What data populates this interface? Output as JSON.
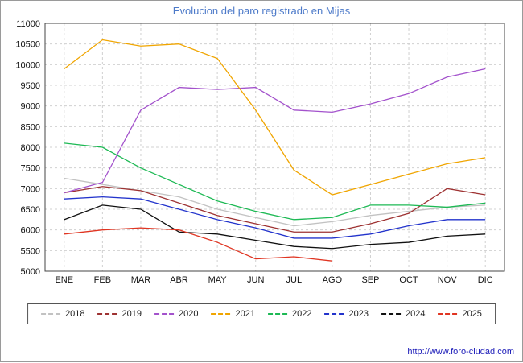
{
  "title": "Evolucion del paro registrado en Mijas",
  "footer": {
    "url": "http://www.foro-ciudad.com"
  },
  "chart_data": {
    "type": "line",
    "title": "Evolucion del paro registrado en Mijas",
    "categories": [
      "ENE",
      "FEB",
      "MAR",
      "ABR",
      "MAY",
      "JUN",
      "JUL",
      "AGO",
      "SEP",
      "OCT",
      "NOV",
      "DIC"
    ],
    "ylim": [
      5000,
      11000
    ],
    "ytick_step": 500,
    "grid": true,
    "legend_position": "bottom",
    "series": [
      {
        "name": "2018",
        "color": "#c2c2c2",
        "values": [
          7250,
          7100,
          6950,
          6800,
          6500,
          6300,
          6100,
          6200,
          6350,
          6450,
          6550,
          6600
        ]
      },
      {
        "name": "2019",
        "color": "#9e3232",
        "values": [
          6900,
          7050,
          6950,
          6650,
          6350,
          6150,
          5950,
          5950,
          6150,
          6400,
          7000,
          6850
        ]
      },
      {
        "name": "2020",
        "color": "#a352cc",
        "values": [
          6900,
          7150,
          8900,
          9450,
          9400,
          9450,
          8900,
          8850,
          9050,
          9300,
          9700,
          9900
        ]
      },
      {
        "name": "2021",
        "color": "#f0a500",
        "values": [
          9900,
          10600,
          10450,
          10500,
          10150,
          8900,
          7450,
          6850,
          7100,
          7350,
          7600,
          7750
        ]
      },
      {
        "name": "2022",
        "color": "#1db954",
        "values": [
          8100,
          8000,
          7500,
          7100,
          6700,
          6450,
          6250,
          6300,
          6600,
          6600,
          6550,
          6650
        ]
      },
      {
        "name": "2023",
        "color": "#2233cc",
        "values": [
          6750,
          6800,
          6750,
          6500,
          6250,
          6050,
          5800,
          5800,
          5900,
          6100,
          6250,
          6250
        ]
      },
      {
        "name": "2024",
        "color": "#111111",
        "values": [
          6250,
          6600,
          6500,
          5950,
          5900,
          5750,
          5600,
          5550,
          5650,
          5700,
          5850,
          5900
        ]
      },
      {
        "name": "2025",
        "color": "#e03522",
        "values": [
          5900,
          6000,
          6050,
          6000,
          5700,
          5300,
          5350,
          5250
        ]
      }
    ]
  }
}
